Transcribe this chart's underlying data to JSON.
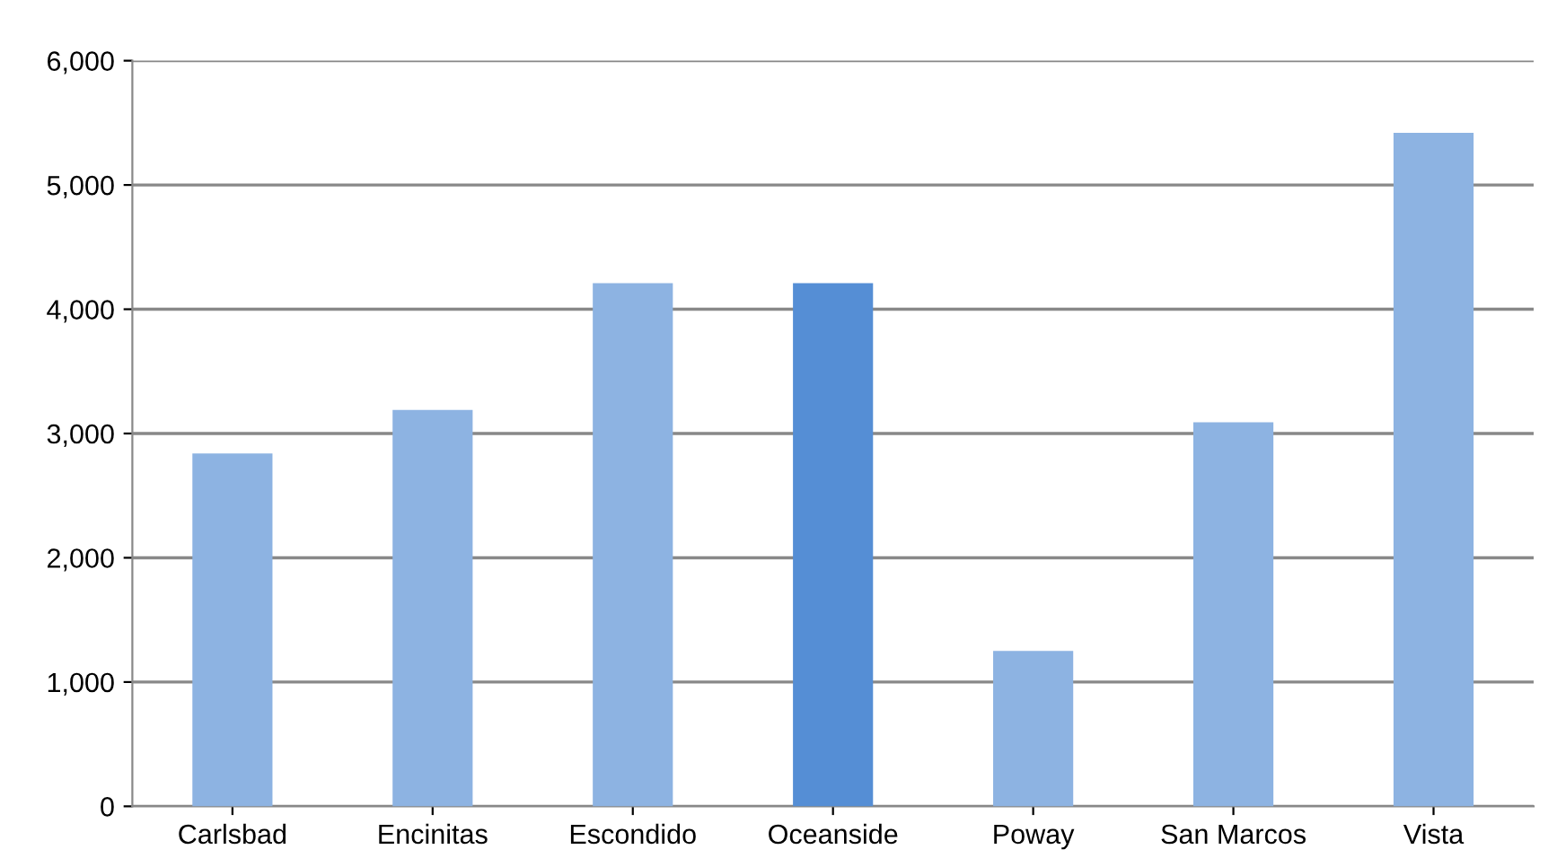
{
  "chart_data": {
    "type": "bar",
    "categories": [
      "Carlsbad",
      "Encinitas",
      "Escondido",
      "Oceanside",
      "Poway",
      "San Marcos",
      "Vista"
    ],
    "values": [
      2840,
      3190,
      4210,
      4210,
      1250,
      3090,
      5420
    ],
    "colors": [
      "#8db3e2",
      "#8db3e2",
      "#8db3e2",
      "#558ed5",
      "#8db3e2",
      "#8db3e2",
      "#8db3e2"
    ],
    "ylim": [
      0,
      6000
    ],
    "yticks": [
      {
        "value": 0,
        "label": "0"
      },
      {
        "value": 1000,
        "label": "1,000"
      },
      {
        "value": 2000,
        "label": "2,000"
      },
      {
        "value": 3000,
        "label": "3,000"
      },
      {
        "value": 4000,
        "label": "4,000"
      },
      {
        "value": 5000,
        "label": "5,000"
      },
      {
        "value": 6000,
        "label": "6,000"
      }
    ],
    "grid": "y"
  }
}
